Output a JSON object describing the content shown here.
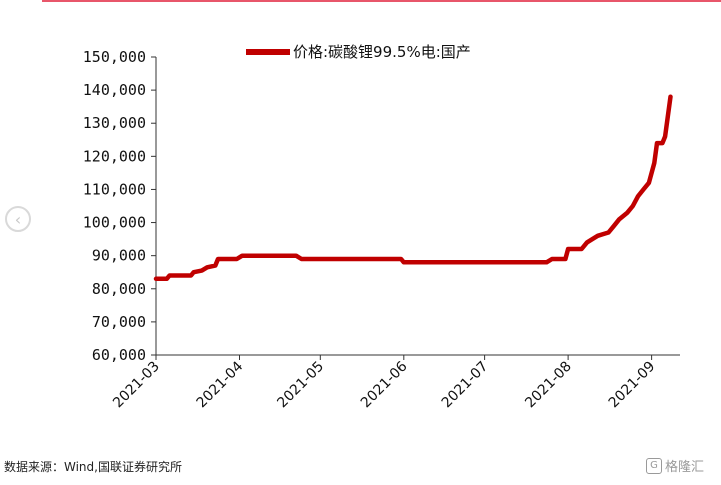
{
  "page": {
    "source": "数据来源：Wind,国联证券研究所",
    "watermark": "格隆汇"
  },
  "chart_data": {
    "type": "line",
    "title": "",
    "xlabel": "",
    "ylabel": "",
    "ylim": [
      60000,
      150000
    ],
    "y_ticks": [
      150000,
      140000,
      130000,
      120000,
      110000,
      100000,
      90000,
      80000,
      70000,
      60000
    ],
    "y_tick_labels": [
      "150,000",
      "140,000",
      "130,000",
      "120,000",
      "110,000",
      "100,000",
      "90,000",
      "80,000",
      "70,000",
      "60,000"
    ],
    "x_tick_labels": [
      "2021-03",
      "2021-04",
      "2021-05",
      "2021-06",
      "2021-07",
      "2021-08",
      "2021-09"
    ],
    "legend_position": "top",
    "series": [
      {
        "name": "价格:碳酸锂99.5%电:国产",
        "color": "#c00000",
        "points": [
          [
            "2021-03-01",
            83000
          ],
          [
            "2021-03-05",
            83000
          ],
          [
            "2021-03-06",
            84000
          ],
          [
            "2021-03-14",
            84000
          ],
          [
            "2021-03-15",
            85000
          ],
          [
            "2021-03-18",
            85500
          ],
          [
            "2021-03-20",
            86500
          ],
          [
            "2021-03-23",
            87000
          ],
          [
            "2021-03-24",
            89000
          ],
          [
            "2021-03-31",
            89000
          ],
          [
            "2021-04-02",
            90000
          ],
          [
            "2021-04-22",
            90000
          ],
          [
            "2021-04-24",
            89000
          ],
          [
            "2021-05-31",
            89000
          ],
          [
            "2021-06-01",
            88000
          ],
          [
            "2021-07-24",
            88000
          ],
          [
            "2021-07-26",
            89000
          ],
          [
            "2021-07-31",
            89000
          ],
          [
            "2021-08-01",
            92000
          ],
          [
            "2021-08-06",
            92000
          ],
          [
            "2021-08-08",
            94000
          ],
          [
            "2021-08-10",
            95000
          ],
          [
            "2021-08-12",
            96000
          ],
          [
            "2021-08-14",
            96500
          ],
          [
            "2021-08-16",
            97000
          ],
          [
            "2021-08-18",
            99000
          ],
          [
            "2021-08-20",
            101000
          ],
          [
            "2021-08-23",
            103000
          ],
          [
            "2021-08-25",
            105000
          ],
          [
            "2021-08-27",
            108000
          ],
          [
            "2021-08-29",
            110000
          ],
          [
            "2021-08-31",
            112000
          ],
          [
            "2021-09-02",
            118000
          ],
          [
            "2021-09-03",
            124000
          ],
          [
            "2021-09-05",
            124000
          ],
          [
            "2021-09-06",
            126000
          ],
          [
            "2021-09-07",
            132000
          ],
          [
            "2021-09-08",
            138000
          ]
        ]
      }
    ]
  }
}
